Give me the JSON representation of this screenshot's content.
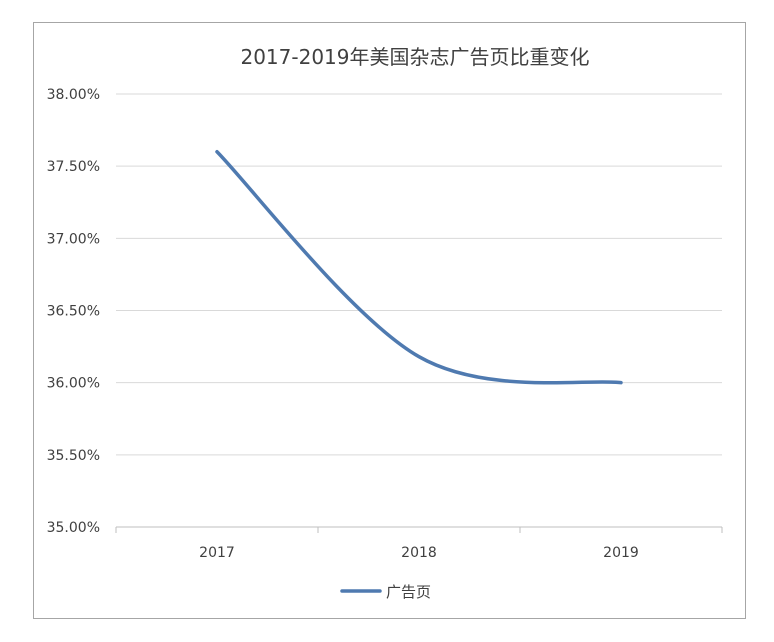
{
  "chart_data": {
    "type": "line",
    "title": "2017-2019年美国杂志广告页比重变化",
    "categories": [
      "2017",
      "2018",
      "2019"
    ],
    "series": [
      {
        "name": "广告页",
        "values": [
          37.6,
          36.18,
          36.0
        ],
        "color": "#4f7ab0"
      }
    ],
    "y_ticks": [
      "38.00%",
      "37.50%",
      "37.00%",
      "36.50%",
      "36.00%",
      "35.50%",
      "35.00%"
    ],
    "ylim": [
      35.0,
      38.0
    ],
    "grid": true,
    "smooth": true,
    "legend": "bottom-center"
  }
}
